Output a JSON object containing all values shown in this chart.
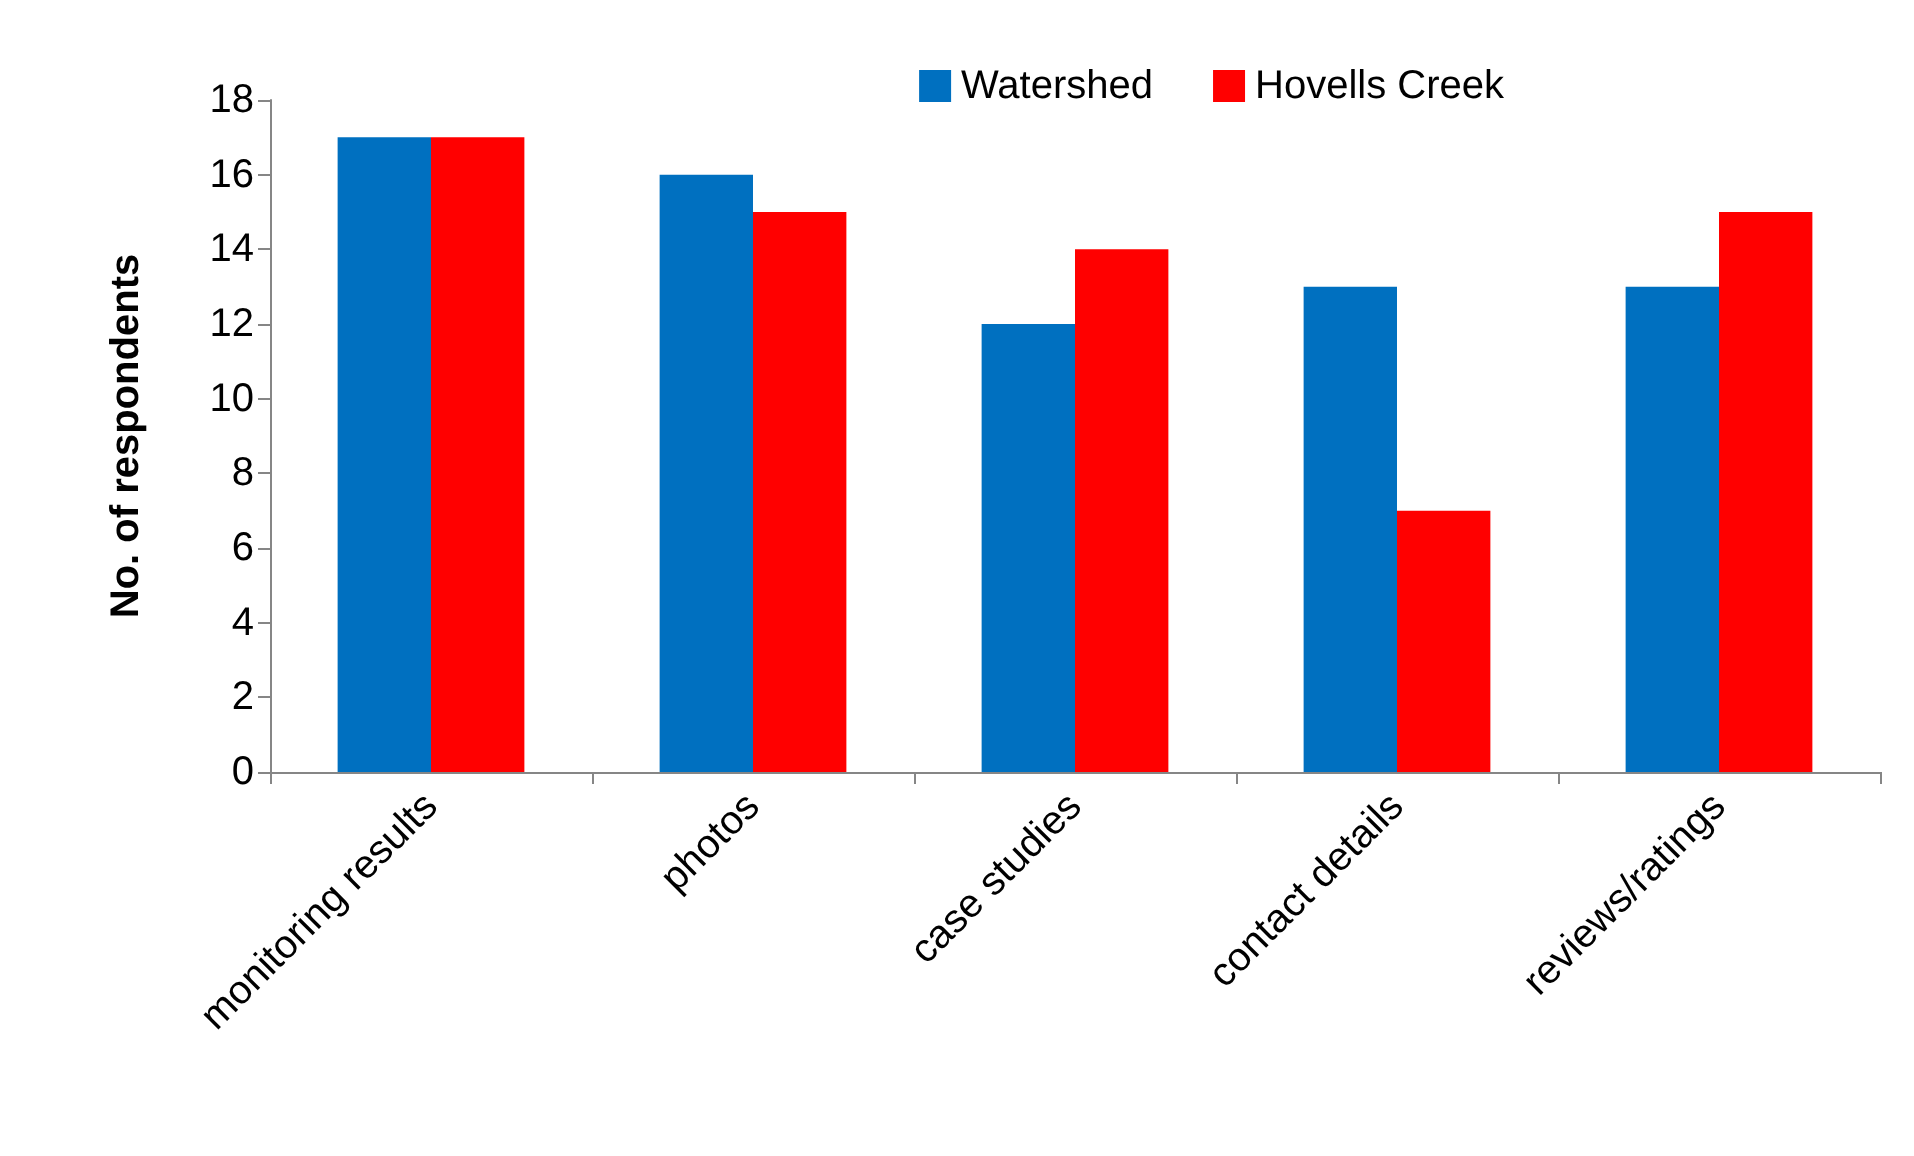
{
  "chart_data": {
    "type": "bar",
    "ylabel": "No. of respondents",
    "categories": [
      "monitoring results",
      "photos",
      "case studies",
      "contact details",
      "reviews/ratings"
    ],
    "series": [
      {
        "name": "Watershed",
        "color": "#0070c0",
        "values": [
          17,
          16,
          12,
          13,
          13
        ]
      },
      {
        "name": "Hovells Creek",
        "color": "#ff0000",
        "values": [
          17,
          15,
          14,
          7,
          15
        ]
      }
    ],
    "ylim": [
      0,
      18
    ],
    "yticks": [
      0,
      2,
      4,
      6,
      8,
      10,
      12,
      14,
      16,
      18
    ],
    "grid": false,
    "legend": "top right"
  }
}
